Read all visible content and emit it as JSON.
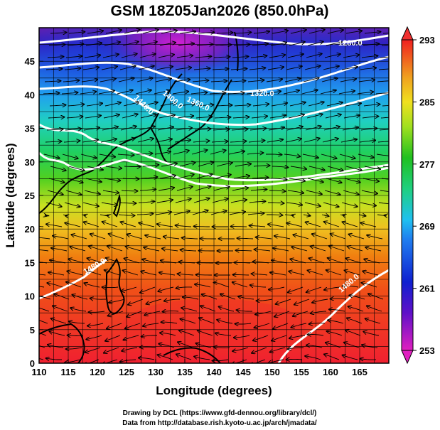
{
  "title": "GSM 18Z05Jan2026 (850.0hPa)",
  "x_axis": {
    "label": "Longitude (degrees)",
    "ticks": [
      "110",
      "115",
      "120",
      "125",
      "130",
      "135",
      "140",
      "145",
      "150",
      "155",
      "160",
      "165"
    ],
    "range": [
      110,
      170
    ]
  },
  "y_axis": {
    "label": "Latitude (degrees)",
    "ticks": [
      "0",
      "5",
      "10",
      "15",
      "20",
      "25",
      "30",
      "35",
      "40",
      "45"
    ],
    "range": [
      0,
      50
    ]
  },
  "colorbar": {
    "ticks": [
      "253",
      "261",
      "269",
      "277",
      "285",
      "293"
    ],
    "range": [
      253,
      293
    ],
    "colors": [
      "#e020c0",
      "#1020d0",
      "#20c0f0",
      "#20c020",
      "#f0e020",
      "#f08010",
      "#f02020"
    ]
  },
  "contour_labels": [
    "1280.0",
    "1320.0",
    "1360.0",
    "1400.0",
    "1440.0",
    "1480.0",
    "1480.0"
  ],
  "credits": [
    "Drawing by DCL (https://www.gfd-dennou.org/library/dcl/)",
    "Data from http://database.rish.kyoto-u.ac.jp/arch/jmadata/"
  ]
}
